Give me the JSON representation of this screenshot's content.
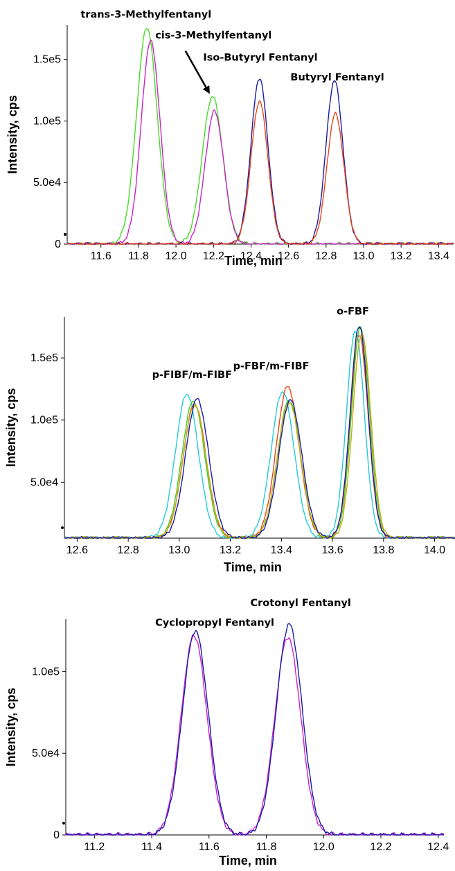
{
  "chart_data": [
    {
      "type": "line",
      "xlabel": "Time, min",
      "ylabel": "Intensity, cps",
      "xlim": [
        11.42,
        13.48
      ],
      "ylim": [
        0,
        178000
      ],
      "xticks": [
        11.6,
        11.8,
        12.0,
        12.2,
        12.4,
        12.6,
        12.8,
        13.0,
        13.2,
        13.4
      ],
      "xtick_labels": [
        "11.6",
        "11.8",
        "12.0",
        "12.2",
        "12.4",
        "12.6",
        "12.8",
        "13.0",
        "13.2",
        "13.4"
      ],
      "yticks": [
        0,
        50000,
        100000,
        150000
      ],
      "ytick_labels": [
        "0",
        "5.0e4",
        "1.0e5",
        "1.5e5"
      ],
      "annotations": [
        {
          "text": "trans-3-Methylfentanyl",
          "x": 11.84,
          "y": 184000
        },
        {
          "text": "cis-3-Methylfentanyl",
          "x": 12.2,
          "y": 167000
        },
        {
          "text": "Iso-Butyryl Fentanyl",
          "x": 12.45,
          "y": 149000
        },
        {
          "text": "Butyryl Fentanyl",
          "x": 12.86,
          "y": 133000
        }
      ],
      "arrow": {
        "from": [
          12.05,
          157000
        ],
        "to": [
          12.18,
          122000
        ]
      },
      "series": [
        {
          "color": "#44dd22",
          "baseline": 0,
          "peaks": [
            [
              11.845,
              176000,
              0.055
            ],
            [
              12.195,
              120000,
              0.055
            ]
          ]
        },
        {
          "color": "#cc22cc",
          "baseline": 0,
          "peaks": [
            [
              11.865,
              165000,
              0.05
            ],
            [
              12.205,
              108000,
              0.05
            ]
          ]
        },
        {
          "color": "#1a1aaa",
          "baseline": 0,
          "peaks": [
            [
              12.445,
              135000,
              0.045
            ],
            [
              12.845,
              133000,
              0.045
            ]
          ]
        },
        {
          "color": "#ee4411",
          "baseline": 0,
          "peaks": [
            [
              12.445,
              116000,
              0.045
            ],
            [
              12.85,
              106000,
              0.045
            ]
          ]
        }
      ]
    },
    {
      "type": "line",
      "xlabel": "Time, min",
      "ylabel": "Intensity, cps",
      "xlim": [
        12.55,
        14.08
      ],
      "ylim": [
        5000,
        183000
      ],
      "xticks": [
        12.6,
        12.8,
        13.0,
        13.2,
        13.4,
        13.6,
        13.8,
        14.0
      ],
      "xtick_labels": [
        "12.6",
        "12.8",
        "13.0",
        "13.2",
        "13.4",
        "13.6",
        "13.8",
        "14.0"
      ],
      "yticks": [
        50000,
        100000,
        150000
      ],
      "ytick_labels": [
        "5.0e4",
        "1.0e5",
        "1.5e5"
      ],
      "annotations": [
        {
          "text": "p-FIBF/m-FIBF",
          "x": 13.05,
          "y": 134000
        },
        {
          "text": "p-FBF/m-FIBF",
          "x": 13.36,
          "y": 141000
        },
        {
          "text": "o-FBF",
          "x": 13.68,
          "y": 185000
        }
      ],
      "series": [
        {
          "color": "#22ccdd",
          "baseline": 5000,
          "peaks": [
            [
              13.03,
              121000,
              0.045
            ],
            [
              13.405,
              123000,
              0.045
            ],
            [
              13.69,
              172000,
              0.035
            ]
          ]
        },
        {
          "color": "#ee4411",
          "baseline": 5000,
          "peaks": [
            [
              13.06,
              113000,
              0.045
            ],
            [
              13.425,
              127000,
              0.045
            ],
            [
              13.705,
              168000,
              0.035
            ]
          ]
        },
        {
          "color": "#44cc22",
          "baseline": 5000,
          "peaks": [
            [
              13.055,
              115000,
              0.045
            ],
            [
              13.43,
              116000,
              0.045
            ],
            [
              13.71,
              175000,
              0.035
            ]
          ]
        },
        {
          "color": "#ccaa11",
          "baseline": 5000,
          "peaks": [
            [
              13.06,
              112000,
              0.045
            ],
            [
              13.43,
              114000,
              0.045
            ],
            [
              13.715,
              170000,
              0.035
            ]
          ]
        },
        {
          "color": "#1a1aaa",
          "baseline": 5000,
          "peaks": [
            [
              13.07,
              117000,
              0.045
            ],
            [
              13.435,
              116000,
              0.045
            ],
            [
              13.705,
              176000,
              0.035
            ]
          ]
        }
      ]
    },
    {
      "type": "line",
      "xlabel": "Time, min",
      "ylabel": "Intensity, cps",
      "xlim": [
        11.1,
        12.42
      ],
      "ylim": [
        0,
        132000
      ],
      "xticks": [
        11.2,
        11.4,
        11.6,
        11.8,
        12.0,
        12.2,
        12.4
      ],
      "xtick_labels": [
        "11.2",
        "11.4",
        "11.6",
        "11.8",
        "12.0",
        "12.2",
        "12.4"
      ],
      "yticks": [
        0,
        50000,
        100000
      ],
      "ytick_labels": [
        "0",
        "5.0e4",
        "1.0e5"
      ],
      "annotations": [
        {
          "text": "Cyclopropyl Fentanyl",
          "x": 11.62,
          "y": 128000
        },
        {
          "text": "Crotonyl Fentanyl",
          "x": 11.92,
          "y": 140000
        }
      ],
      "series": [
        {
          "color": "#cc22cc",
          "baseline": 0,
          "peaks": [
            [
              11.548,
              122000,
              0.045
            ],
            [
              11.875,
              121000,
              0.045
            ]
          ]
        },
        {
          "color": "#1a1aaa",
          "baseline": 0,
          "peaks": [
            [
              11.552,
              125000,
              0.045
            ],
            [
              11.88,
              129000,
              0.045
            ]
          ]
        }
      ]
    }
  ]
}
